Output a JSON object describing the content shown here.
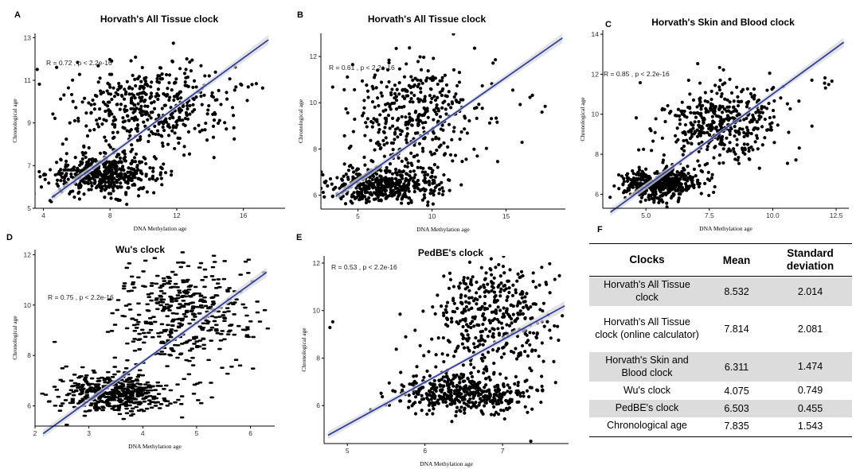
{
  "colors": {
    "point": "#000000",
    "line": "#2f3fa3",
    "band": "#d9d9d9",
    "axis": "#000000"
  },
  "chart_data": [
    {
      "panel": "A",
      "type": "scatter",
      "title": "Horvath's All Tissue clock",
      "xlabel": "DNA Methylation age",
      "ylabel": "Chronological age",
      "xlim": [
        3.5,
        18.5
      ],
      "ylim": [
        5,
        13.2
      ],
      "xticks": [
        4,
        8,
        12,
        16
      ],
      "yticks": [
        5,
        7,
        9,
        11,
        13
      ],
      "annotation": "R = 0.72 , p < 2.2e-16",
      "r": 0.72,
      "fit": {
        "x": [
          4.5,
          17.5
        ],
        "y": [
          5.5,
          12.9
        ]
      },
      "clusters": [
        {
          "n": 470,
          "mx": 7.6,
          "sx": 1.6,
          "my": 6.6,
          "sy": 0.45
        },
        {
          "n": 450,
          "mx": 10.5,
          "sx": 2.3,
          "my": 9.8,
          "sy": 1.1
        },
        {
          "n": 8,
          "mx": 16.5,
          "sx": 0.8,
          "my": 10.6,
          "sy": 0.3
        }
      ]
    },
    {
      "panel": "B",
      "type": "scatter",
      "title": "Horvath's All Tissue clock",
      "xlabel": "DNA Methylation age",
      "ylabel": "Chronological age",
      "xlim": [
        2.5,
        19
      ],
      "ylim": [
        5.4,
        13
      ],
      "xticks": [
        5,
        10,
        15
      ],
      "yticks": [
        6,
        8,
        10,
        12
      ],
      "annotation": "R = 0.61 , p < 2.2e-16",
      "r": 0.61,
      "fit": {
        "x": [
          3.5,
          18.8
        ],
        "y": [
          5.95,
          12.8
        ]
      },
      "clusters": [
        {
          "n": 450,
          "mx": 6.8,
          "sx": 1.8,
          "my": 6.4,
          "sy": 0.4
        },
        {
          "n": 400,
          "mx": 8.8,
          "sx": 2.2,
          "my": 9.4,
          "sy": 1.2
        },
        {
          "n": 8,
          "mx": 16.5,
          "sx": 1.2,
          "my": 10.2,
          "sy": 0.8
        }
      ]
    },
    {
      "panel": "C",
      "type": "scatter",
      "title": "Horvath's Skin and Blood clock",
      "xlabel": "DNA Methylation age",
      "ylabel": "Chronological age",
      "xlim": [
        3.3,
        13
      ],
      "ylim": [
        5.3,
        14.2
      ],
      "xticks": [
        5.0,
        7.5,
        10.0,
        12.5
      ],
      "xtick_labels": [
        "5.0",
        "7.5",
        "10.0",
        "12.5"
      ],
      "yticks": [
        6,
        8,
        10,
        12,
        14
      ],
      "annotation": "R = 0.85 , p < 2.2e-16",
      "r": 0.85,
      "fit": {
        "x": [
          3.6,
          12.8
        ],
        "y": [
          5.1,
          13.6
        ]
      },
      "clusters": [
        {
          "n": 460,
          "mx": 5.5,
          "sx": 0.75,
          "my": 6.5,
          "sy": 0.4
        },
        {
          "n": 420,
          "mx": 8.0,
          "sx": 1.3,
          "my": 9.6,
          "sy": 1.0
        },
        {
          "n": 6,
          "mx": 11.8,
          "sx": 0.5,
          "my": 11.3,
          "sy": 0.3
        }
      ]
    },
    {
      "panel": "D",
      "type": "scatter",
      "title": "Wu's clock",
      "xlabel": "DNA Methylation age",
      "ylabel": "Chronological age",
      "xlim": [
        2,
        6.45
      ],
      "ylim": [
        5.2,
        12.2
      ],
      "xticks": [
        2,
        3,
        4,
        5,
        6
      ],
      "yticks": [
        6,
        8,
        10,
        12
      ],
      "annotation": "R = 0.75 , p < 2.2e-16",
      "r": 0.75,
      "fit": {
        "x": [
          2.15,
          6.3
        ],
        "y": [
          4.9,
          11.3
        ]
      },
      "marker": "dash",
      "clusters": [
        {
          "n": 480,
          "mx": 3.5,
          "sx": 0.5,
          "my": 6.5,
          "sy": 0.4
        },
        {
          "n": 420,
          "mx": 4.8,
          "sx": 0.65,
          "my": 9.6,
          "sy": 1.1
        }
      ]
    },
    {
      "panel": "E",
      "type": "scatter",
      "title": "PedBE's clock",
      "xlabel": "DNA Methylation age",
      "ylabel": "Chronological age",
      "xlim": [
        4.7,
        7.85
      ],
      "ylim": [
        4.4,
        12.3
      ],
      "xticks": [
        5,
        6,
        7
      ],
      "yticks": [
        6,
        8,
        10,
        12
      ],
      "annotation": "R = 0.53 , p < 2.2e-16",
      "r": 0.53,
      "fit": {
        "x": [
          4.75,
          7.8
        ],
        "y": [
          4.75,
          10.2
        ]
      },
      "clusters": [
        {
          "n": 430,
          "mx": 6.5,
          "sx": 0.45,
          "my": 6.5,
          "sy": 0.45
        },
        {
          "n": 420,
          "mx": 6.85,
          "sx": 0.45,
          "my": 9.8,
          "sy": 1.15
        },
        {
          "n": 2,
          "mx": 4.8,
          "sx": 0.05,
          "my": 9.4,
          "sy": 0.1
        }
      ]
    }
  ],
  "table": {
    "panel": "F",
    "headers": {
      "clocks": "Clocks",
      "mean": "Mean",
      "sd": "Standard deviation"
    },
    "rows": [
      {
        "clock": "Horvath's All Tissue clock",
        "mean": "8.532",
        "sd": "2.014",
        "shaded": true
      },
      {
        "clock": "Horvath's All Tissue clock (online calculator)",
        "mean": "7.814",
        "sd": "2.081",
        "shaded": false
      },
      {
        "clock": "Horvath's Skin and Blood clock",
        "mean": "6.311",
        "sd": "1.474",
        "shaded": true
      },
      {
        "clock": "Wu's clock",
        "mean": "4.075",
        "sd": "0.749",
        "shaded": false
      },
      {
        "clock": "PedBE's clock",
        "mean": "6.503",
        "sd": "0.455",
        "shaded": true
      },
      {
        "clock": "Chronological age",
        "mean": "7.835",
        "sd": "1.543",
        "shaded": false
      }
    ]
  }
}
